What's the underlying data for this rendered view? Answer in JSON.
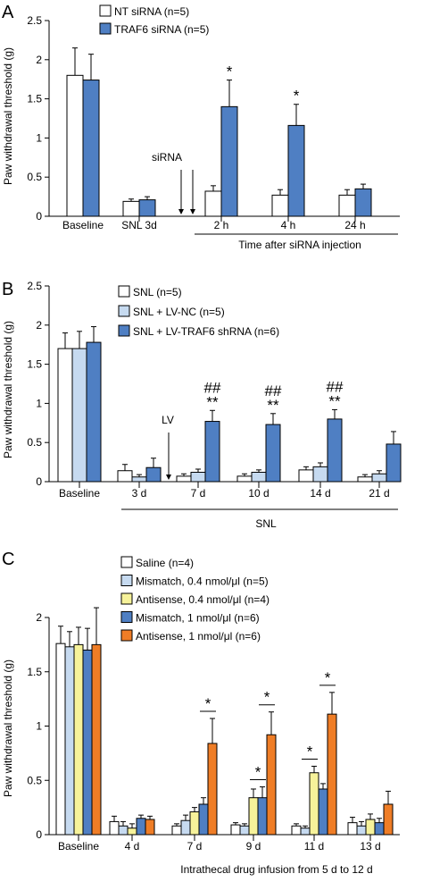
{
  "chart_data": [
    {
      "panel": "A",
      "type": "bar",
      "ylabel": "Paw withdrawal threshold (g)",
      "ylim": [
        0,
        2.5
      ],
      "yticks": [
        "0",
        "0.5",
        "1",
        "1.5",
        "2",
        "2.5"
      ],
      "categories": [
        "Baseline",
        "SNL 3d",
        "2 h",
        "4 h",
        "24 h"
      ],
      "series": [
        {
          "name": "NT siRNA (n=5)",
          "color": "#ffffff",
          "values": [
            1.8,
            0.19,
            0.32,
            0.27,
            0.27
          ],
          "errors": [
            0.35,
            0.03,
            0.07,
            0.07,
            0.07
          ]
        },
        {
          "name": "TRAF6 siRNA (n=5)",
          "color": "#4f7fc3",
          "values": [
            1.74,
            0.21,
            1.4,
            1.16,
            0.35
          ],
          "errors": [
            0.33,
            0.04,
            0.34,
            0.27,
            0.06
          ]
        }
      ],
      "significance": [
        {
          "category": 2,
          "text": "*"
        },
        {
          "category": 3,
          "text": "*"
        }
      ],
      "annotations": {
        "injection": "siRNA"
      },
      "group_label": "Time after siRNA injection"
    },
    {
      "panel": "B",
      "type": "bar",
      "ylabel": "Paw withdrawal threshold (g)",
      "ylim": [
        0,
        2.5
      ],
      "yticks": [
        "0",
        "0.5",
        "1",
        "1.5",
        "2",
        "2.5"
      ],
      "categories": [
        "Baseline",
        "3 d",
        "7 d",
        "10 d",
        "14 d",
        "21 d"
      ],
      "series": [
        {
          "name": "SNL (n=5)",
          "color": "#ffffff",
          "values": [
            1.7,
            0.14,
            0.07,
            0.07,
            0.15,
            0.06
          ],
          "errors": [
            0.2,
            0.08,
            0.03,
            0.03,
            0.04,
            0.03
          ]
        },
        {
          "name": "SNL + LV-NC (n=5)",
          "color": "#c6daf0",
          "values": [
            1.7,
            0.06,
            0.12,
            0.12,
            0.19,
            0.1
          ],
          "errors": [
            0.22,
            0.03,
            0.04,
            0.03,
            0.05,
            0.04
          ]
        },
        {
          "name": "SNL + LV-TRAF6 shRNA (n=6)",
          "color": "#4f7fc3",
          "values": [
            1.78,
            0.18,
            0.77,
            0.73,
            0.8,
            0.48
          ],
          "errors": [
            0.2,
            0.12,
            0.14,
            0.14,
            0.12,
            0.16
          ]
        }
      ],
      "significance": [
        {
          "category": 2,
          "lines": [
            "##",
            "**"
          ]
        },
        {
          "category": 3,
          "lines": [
            "##",
            "**"
          ]
        },
        {
          "category": 4,
          "lines": [
            "##",
            "**"
          ]
        }
      ],
      "annotations": {
        "injection": "LV"
      },
      "group_label": "SNL"
    },
    {
      "panel": "C",
      "type": "bar",
      "ylabel": "Paw withdrawal threshold (g)",
      "ylim": [
        0,
        2
      ],
      "yticks": [
        "0",
        "0.5",
        "1",
        "1.5",
        "2"
      ],
      "categories": [
        "Baseline",
        "4 d",
        "7 d",
        "9 d",
        "11 d",
        "13 d"
      ],
      "series": [
        {
          "name": "Saline (n=4)",
          "color": "#ffffff",
          "values": [
            1.76,
            0.12,
            0.08,
            0.09,
            0.08,
            0.11
          ],
          "errors": [
            0.16,
            0.05,
            0.02,
            0.02,
            0.02,
            0.05
          ]
        },
        {
          "name": "Mismatch, 0.4 nmol/μl (n=5)",
          "color": "#c6daf0",
          "values": [
            1.73,
            0.08,
            0.13,
            0.08,
            0.06,
            0.08
          ],
          "errors": [
            0.14,
            0.04,
            0.05,
            0.02,
            0.02,
            0.04
          ]
        },
        {
          "name": "Antisense, 0.4 nmol/μl (n=4)",
          "color": "#f6f29a",
          "values": [
            1.75,
            0.06,
            0.21,
            0.34,
            0.57,
            0.14
          ],
          "errors": [
            0.16,
            0.04,
            0.04,
            0.08,
            0.06,
            0.05
          ]
        },
        {
          "name": "Mismatch, 1 nmol/μl (n=6)",
          "color": "#4f7fc3",
          "values": [
            1.7,
            0.15,
            0.28,
            0.34,
            0.42,
            0.11
          ],
          "errors": [
            0.2,
            0.03,
            0.06,
            0.1,
            0.05,
            0.04
          ]
        },
        {
          "name": "Antisense, 1 nmol/μl (n=6)",
          "color": "#ef7d26",
          "values": [
            1.75,
            0.14,
            0.84,
            0.92,
            1.11,
            0.28
          ],
          "errors": [
            0.34,
            0.03,
            0.23,
            0.21,
            0.2,
            0.12
          ]
        }
      ],
      "significance": [
        {
          "category": 2,
          "from": 3,
          "to": 4,
          "text": "*"
        },
        {
          "category": 3,
          "from": 2,
          "to": 3,
          "text": "*"
        },
        {
          "category": 3,
          "from": 3,
          "to": 4,
          "text": "*"
        },
        {
          "category": 4,
          "from": 1,
          "to": 2,
          "text": "*"
        },
        {
          "category": 4,
          "from": 3,
          "to": 4,
          "text": "*"
        }
      ],
      "group_label": "Intrathecal drug infusion from 5 d to 12 d"
    }
  ]
}
